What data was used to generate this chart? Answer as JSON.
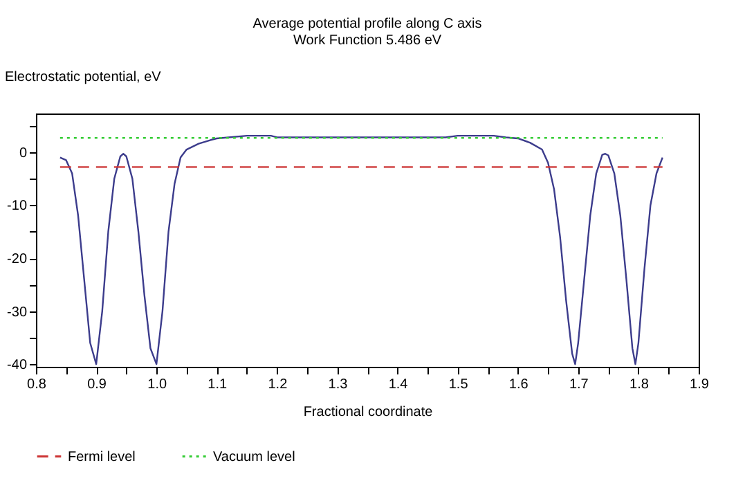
{
  "chart_data": {
    "type": "line",
    "title": "Average potential profile along C axis",
    "subtitle": "Work Function 5.486 eV",
    "xlabel": "Fractional coordinate",
    "ylabel": "Electrostatic potential, eV",
    "xlim": [
      0.8,
      1.9
    ],
    "ylim": [
      -40.5,
      7.3
    ],
    "xticks": [
      0.8,
      {
        "value": 0.85,
        "label": null
      },
      0.9,
      {
        "value": 0.95,
        "label": null
      },
      {
        "value": 1,
        "label": "1.0"
      },
      {
        "value": 1.05,
        "label": null
      },
      1.1,
      {
        "value": 1.15,
        "label": null
      },
      1.2,
      {
        "value": 1.25,
        "label": null
      },
      1.3,
      {
        "value": 1.35,
        "label": null
      },
      1.4,
      {
        "value": 1.45,
        "label": null
      },
      1.5,
      {
        "value": 1.55,
        "label": null
      },
      1.6,
      {
        "value": 1.65,
        "label": null
      },
      1.7,
      {
        "value": 1.75,
        "label": null
      },
      1.8,
      {
        "value": 1.85,
        "label": null
      },
      1.9
    ],
    "yticks": [
      {
        "value": 5,
        "label": null
      },
      0,
      {
        "value": -5,
        "label": null
      },
      -10,
      {
        "value": -15,
        "label": null
      },
      -20,
      {
        "value": -25,
        "label": null
      },
      -30,
      {
        "value": -35,
        "label": null
      },
      -40
    ],
    "grid": false,
    "legend": "bottom",
    "marker": "none",
    "series": [
      {
        "color": "#3c3c8c",
        "line_style": "solid",
        "x": [
          0.84,
          0.85,
          0.86,
          0.87,
          0.88,
          0.89,
          0.9,
          0.91,
          0.92,
          0.93,
          0.94,
          0.945,
          0.95,
          0.96,
          0.97,
          0.98,
          0.99,
          1.0,
          1.01,
          1.02,
          1.03,
          1.04,
          1.05,
          1.07,
          1.09,
          1.1,
          1.12,
          1.15,
          1.19,
          1.2,
          1.48,
          1.5,
          1.56,
          1.58,
          1.6,
          1.62,
          1.64,
          1.65,
          1.66,
          1.67,
          1.68,
          1.69,
          1.695,
          1.7,
          1.71,
          1.72,
          1.73,
          1.74,
          1.745,
          1.75,
          1.76,
          1.77,
          1.78,
          1.79,
          1.795,
          1.8,
          1.81,
          1.82,
          1.83,
          1.84
        ],
        "values": [
          -1,
          -1.5,
          -4,
          -12,
          -24,
          -36,
          -40,
          -30,
          -15,
          -5,
          -0.8,
          -0.3,
          -0.8,
          -5,
          -15,
          -27,
          -37,
          -40,
          -30,
          -15,
          -6,
          -1,
          0.5,
          1.6,
          2.3,
          2.6,
          2.8,
          3.1,
          3.1,
          2.8,
          2.8,
          3.1,
          3.1,
          2.8,
          2.6,
          1.8,
          0.5,
          -2,
          -7,
          -16,
          -28,
          -38,
          -40,
          -36,
          -24,
          -12,
          -4,
          -0.5,
          -0.3,
          -0.6,
          -4,
          -12,
          -24,
          -37,
          -40,
          -36,
          -22,
          -10,
          -4,
          -1
        ]
      },
      {
        "name": "Fermi level",
        "color": "#cc3333",
        "line_style": "dashed",
        "x": [
          0.84,
          1.84
        ],
        "values": [
          -2.8,
          -2.8
        ]
      },
      {
        "name": "Vacuum level",
        "color": "#33cc33",
        "line_style": "dotted",
        "x": [
          0.84,
          1.84
        ],
        "values": [
          2.7,
          2.7
        ]
      }
    ]
  }
}
